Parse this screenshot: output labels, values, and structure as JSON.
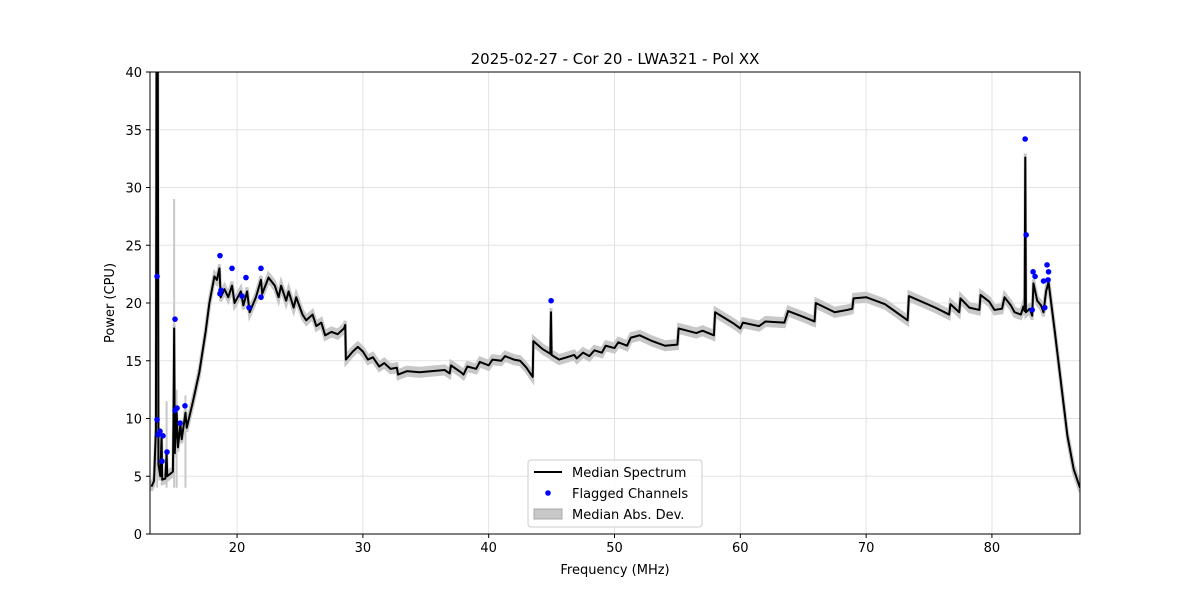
{
  "chart_data": {
    "type": "line",
    "title": "2025-02-27 - Cor 20 - LWA321 - Pol XX",
    "xlabel": "Frequency (MHz)",
    "ylabel": "Power (CPU)",
    "xlim": [
      13.08,
      87.0
    ],
    "ylim": [
      0,
      40
    ],
    "xticks": [
      20,
      30,
      40,
      50,
      60,
      70,
      80
    ],
    "yticks": [
      0,
      5,
      10,
      15,
      20,
      25,
      30,
      35,
      40
    ],
    "grid": true,
    "legend_position": "bottom-center",
    "legend": [
      "Median Spectrum",
      "Flagged Channels",
      "Median Abs. Dev."
    ],
    "colors": {
      "median": "#000000",
      "flagged": "#0000ff",
      "mad": "#c8c8c8"
    },
    "series": [
      {
        "name": "Median Spectrum",
        "points": [
          [
            13.2,
            4.1
          ],
          [
            13.4,
            4.6
          ],
          [
            13.55,
            9
          ],
          [
            13.6,
            40
          ],
          [
            13.7,
            40
          ],
          [
            13.75,
            6
          ],
          [
            13.9,
            5
          ],
          [
            14.0,
            8.5
          ],
          [
            14.05,
            4.7
          ],
          [
            14.3,
            4.8
          ],
          [
            14.4,
            7
          ],
          [
            14.45,
            5
          ],
          [
            14.9,
            5.4
          ],
          [
            14.95,
            10
          ],
          [
            15.0,
            17.8
          ],
          [
            15.05,
            7
          ],
          [
            15.2,
            10.5
          ],
          [
            15.3,
            7.5
          ],
          [
            15.5,
            9.5
          ],
          [
            15.6,
            8.2
          ],
          [
            15.9,
            10.5
          ],
          [
            16.0,
            9.2
          ],
          [
            16.5,
            11.5
          ],
          [
            17.0,
            14
          ],
          [
            17.5,
            17.5
          ],
          [
            17.8,
            20
          ],
          [
            18.2,
            22.3
          ],
          [
            18.4,
            22.0
          ],
          [
            18.6,
            23
          ],
          [
            18.7,
            20.5
          ],
          [
            19.0,
            21.2
          ],
          [
            19.3,
            20.5
          ],
          [
            19.6,
            21.5
          ],
          [
            19.8,
            20.0
          ],
          [
            20.3,
            21.0
          ],
          [
            20.5,
            19.8
          ],
          [
            20.8,
            21.0
          ],
          [
            21.0,
            19.2
          ],
          [
            21.5,
            20.5
          ],
          [
            21.9,
            22.0
          ],
          [
            22.0,
            20.8
          ],
          [
            22.5,
            22.2
          ],
          [
            23.0,
            21.5
          ],
          [
            23.3,
            20.5
          ],
          [
            23.5,
            21.5
          ],
          [
            23.9,
            20.2
          ],
          [
            24.1,
            21.0
          ],
          [
            24.5,
            19.6
          ],
          [
            24.7,
            20.5
          ],
          [
            25.2,
            19.0
          ],
          [
            25.5,
            18.5
          ],
          [
            26.0,
            19.0
          ],
          [
            26.3,
            18.0
          ],
          [
            26.7,
            18.3
          ],
          [
            27.0,
            17.2
          ],
          [
            27.5,
            17.5
          ],
          [
            28.0,
            17.3
          ],
          [
            28.5,
            17.8
          ],
          [
            28.6,
            18.1
          ],
          [
            28.65,
            15.1
          ],
          [
            29.2,
            15.8
          ],
          [
            29.6,
            16.2
          ],
          [
            30.0,
            15.8
          ],
          [
            30.4,
            15.1
          ],
          [
            30.8,
            15.3
          ],
          [
            31.3,
            14.5
          ],
          [
            31.7,
            14.8
          ],
          [
            32.2,
            14.3
          ],
          [
            32.7,
            14.4
          ],
          [
            32.8,
            13.8
          ],
          [
            33.5,
            14.1
          ],
          [
            34.5,
            14.0
          ],
          [
            35.5,
            14.1
          ],
          [
            36.5,
            14.2
          ],
          [
            36.9,
            13.9
          ],
          [
            37.0,
            14.6
          ],
          [
            37.8,
            14.0
          ],
          [
            38.0,
            13.8
          ],
          [
            38.3,
            14.5
          ],
          [
            39.0,
            14.3
          ],
          [
            39.3,
            14.9
          ],
          [
            40.0,
            14.6
          ],
          [
            40.3,
            15.1
          ],
          [
            41.0,
            15.0
          ],
          [
            41.3,
            15.4
          ],
          [
            42.0,
            15.1
          ],
          [
            42.5,
            15.0
          ],
          [
            43.0,
            14.4
          ],
          [
            43.5,
            13.6
          ],
          [
            43.55,
            16.7
          ],
          [
            44.3,
            16.0
          ],
          [
            44.9,
            15.6
          ],
          [
            44.95,
            19.2
          ],
          [
            45.0,
            15.5
          ],
          [
            45.6,
            15.1
          ],
          [
            46.2,
            15.3
          ],
          [
            46.8,
            15.5
          ],
          [
            47.0,
            15.2
          ],
          [
            47.5,
            15.7
          ],
          [
            48.0,
            15.4
          ],
          [
            48.4,
            15.9
          ],
          [
            49.0,
            15.7
          ],
          [
            49.3,
            16.3
          ],
          [
            50.0,
            16.1
          ],
          [
            50.3,
            16.6
          ],
          [
            51.0,
            16.3
          ],
          [
            51.3,
            17.0
          ],
          [
            52.0,
            17.2
          ],
          [
            53.0,
            16.7
          ],
          [
            54.0,
            16.3
          ],
          [
            55.0,
            16.4
          ],
          [
            55.1,
            17.8
          ],
          [
            56.5,
            17.4
          ],
          [
            57.0,
            17.6
          ],
          [
            57.9,
            17.2
          ],
          [
            58.0,
            19.2
          ],
          [
            59.5,
            18.2
          ],
          [
            60.0,
            17.8
          ],
          [
            60.2,
            18.3
          ],
          [
            61.5,
            18.0
          ],
          [
            62.0,
            18.4
          ],
          [
            63.5,
            18.3
          ],
          [
            63.8,
            19.3
          ],
          [
            65.0,
            18.8
          ],
          [
            65.9,
            18.4
          ],
          [
            66.0,
            20.0
          ],
          [
            67.5,
            19.2
          ],
          [
            68.5,
            19.4
          ],
          [
            68.9,
            19.5
          ],
          [
            69.0,
            20.4
          ],
          [
            70.0,
            20.5
          ],
          [
            71.5,
            19.9
          ],
          [
            73.3,
            18.5
          ],
          [
            73.4,
            20.6
          ],
          [
            75.5,
            19.6
          ],
          [
            76.6,
            19.0
          ],
          [
            76.7,
            19.9
          ],
          [
            77.4,
            19.2
          ],
          [
            77.5,
            20.4
          ],
          [
            78.2,
            19.6
          ],
          [
            79.0,
            19.4
          ],
          [
            79.1,
            20.7
          ],
          [
            79.8,
            20.1
          ],
          [
            80.2,
            19.4
          ],
          [
            80.8,
            19.5
          ],
          [
            81.0,
            20.5
          ],
          [
            81.5,
            19.8
          ],
          [
            81.8,
            19.2
          ],
          [
            82.3,
            19.0
          ],
          [
            82.5,
            19.7
          ],
          [
            82.6,
            19.3
          ],
          [
            82.65,
            32.6
          ],
          [
            82.7,
            19.2
          ],
          [
            83.0,
            19.5
          ],
          [
            83.2,
            18.9
          ],
          [
            83.3,
            21.7
          ],
          [
            83.6,
            20.2
          ],
          [
            83.9,
            19.8
          ],
          [
            84.1,
            19.2
          ],
          [
            84.3,
            21.0
          ],
          [
            84.5,
            21.8
          ],
          [
            85.0,
            17.5
          ],
          [
            85.5,
            13.0
          ],
          [
            86.0,
            8.5
          ],
          [
            86.5,
            5.6
          ],
          [
            87.0,
            4.0
          ]
        ]
      },
      {
        "name": "Flagged Channels",
        "points": [
          [
            13.64,
            22.3
          ],
          [
            13.64,
            9.9
          ],
          [
            13.87,
            8.9
          ],
          [
            13.72,
            8.6
          ],
          [
            14.11,
            8.5
          ],
          [
            14.03,
            6.3
          ],
          [
            14.43,
            7.1
          ],
          [
            15.07,
            18.6
          ],
          [
            15.07,
            10.7
          ],
          [
            15.23,
            10.9
          ],
          [
            15.47,
            9.6
          ],
          [
            15.86,
            11.1
          ],
          [
            18.64,
            24.1
          ],
          [
            18.64,
            20.8
          ],
          [
            18.72,
            21.1
          ],
          [
            19.6,
            23.0
          ],
          [
            20.71,
            22.2
          ],
          [
            20.39,
            20.6
          ],
          [
            20.95,
            19.6
          ],
          [
            21.9,
            23.0
          ],
          [
            21.9,
            20.5
          ],
          [
            44.96,
            20.2
          ],
          [
            82.64,
            34.2
          ],
          [
            82.72,
            25.9
          ],
          [
            83.27,
            22.7
          ],
          [
            83.43,
            22.3
          ],
          [
            83.2,
            19.4
          ],
          [
            84.2,
            19.6
          ],
          [
            84.38,
            23.3
          ],
          [
            84.46,
            22.0
          ],
          [
            84.5,
            22.7
          ],
          [
            84.1,
            21.9
          ]
        ]
      },
      {
        "name": "Median Abs. Dev.",
        "typical_mad": 0.35,
        "spikes": [
          [
            13.65,
            38
          ],
          [
            14.4,
            11.5
          ],
          [
            15.0,
            29
          ],
          [
            15.2,
            12.5
          ],
          [
            15.9,
            12.0
          ]
        ]
      }
    ]
  }
}
